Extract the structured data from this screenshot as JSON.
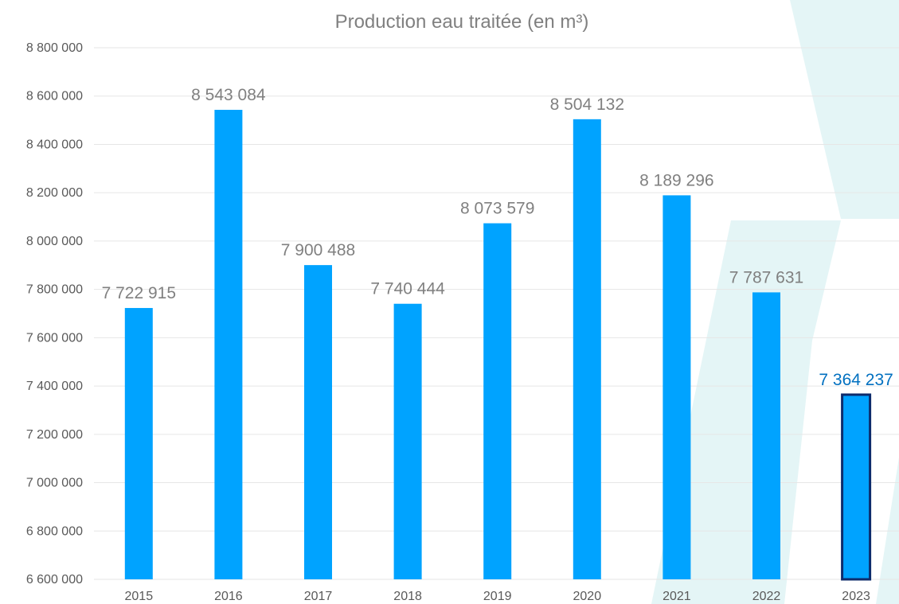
{
  "chart_data": {
    "type": "bar",
    "title": "Production eau traitée (en m³)",
    "categories": [
      "2015",
      "2016",
      "2017",
      "2018",
      "2019",
      "2020",
      "2021",
      "2022",
      "2023"
    ],
    "values": [
      7722915,
      8543084,
      7900488,
      7740444,
      8073579,
      8504132,
      8189296,
      7787631,
      7364237
    ],
    "value_labels": [
      "7 722 915",
      "8 543 084",
      "7 900 488",
      "7 740 444",
      "8 073 579",
      "8 504 132",
      "8 189 296",
      "7 787 631",
      "7 364 237"
    ],
    "ylim": [
      6600000,
      8800000
    ],
    "yticks": [
      6600000,
      6800000,
      7000000,
      7200000,
      7400000,
      7600000,
      7800000,
      8000000,
      8200000,
      8400000,
      8600000,
      8800000
    ],
    "ytick_labels": [
      "6 600 000",
      "6 800 000",
      "7 000 000",
      "7 200 000",
      "7 400 000",
      "7 600 000",
      "7 800 000",
      "8 000 000",
      "8 200 000",
      "8 400 000",
      "8 600 000",
      "8 800 000"
    ],
    "grid": true,
    "highlighted_category": "2023",
    "colors": {
      "bar": "#00A3FF",
      "bar_highlight_outline": "#0D2B6B",
      "label": "#808080",
      "label_highlight": "#0070C0",
      "grid": "#E6E6E6",
      "background_shape": "#E4F5F6"
    }
  }
}
